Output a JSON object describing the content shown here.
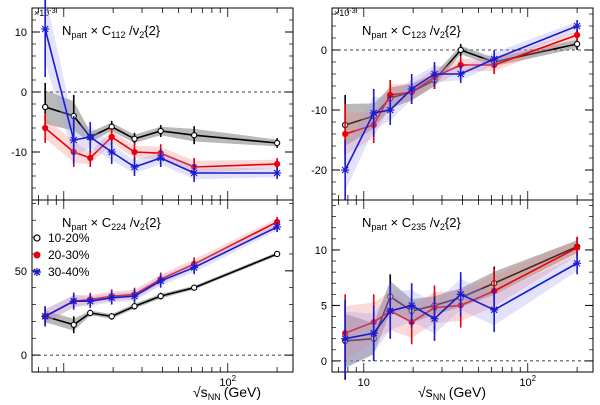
{
  "figure": {
    "xlabel": "√s",
    "xlabel_sub": "NN",
    "xlabel_unit": "(GeV)",
    "legend": {
      "entries": [
        {
          "label": "10-20%",
          "color": "#000000",
          "marker": "open-circle"
        },
        {
          "label": "20-30%",
          "color": "#e8000b",
          "marker": "filled-circle"
        },
        {
          "label": "30-40%",
          "color": "#1a1ad0",
          "marker": "star"
        }
      ]
    },
    "colors": {
      "c1020": "#000000",
      "c2030": "#e8000b",
      "c3040": "#1a1ad0",
      "band_gray": "#808080",
      "band_red": "#f08080",
      "band_blue": "#a0a0f0"
    }
  },
  "chart_data": [
    {
      "type": "line",
      "panel": "top-left",
      "title": {
        "prefix": "N",
        "prefix_sub": "part",
        "times": " × C",
        "c_sub": "112",
        "rest": " /v",
        "v_sub": "2",
        "tail": "{2}"
      },
      "multiplier": "×10",
      "multiplier_exp": "-3",
      "xscale": "log",
      "xlim": [
        6.4,
        250
      ],
      "ylim": [
        -18,
        14
      ],
      "yticks": [
        -10,
        0,
        10
      ],
      "xticks_major": [],
      "series": [
        {
          "name": "10-20%",
          "key": "c1020",
          "x": [
            7.7,
            11.5,
            14.5,
            19.6,
            27,
            39,
            62.4,
            200
          ],
          "y": [
            -2.5,
            -4,
            -7.5,
            -5.8,
            -7.8,
            -6.5,
            -7.2,
            -8.5
          ],
          "err": [
            4,
            3.5,
            1.2,
            1,
            1,
            1,
            1.5,
            0.8
          ]
        },
        {
          "name": "20-30%",
          "key": "c2030",
          "x": [
            7.7,
            11.5,
            14.5,
            19.6,
            27,
            39,
            62.4,
            200
          ],
          "y": [
            -6,
            -10,
            -11,
            -7.5,
            -10,
            -10.2,
            -12.5,
            -12
          ],
          "err": [
            2.5,
            2.5,
            1.5,
            1.5,
            1.5,
            1.5,
            1.5,
            1
          ]
        },
        {
          "name": "30-40%",
          "key": "c3040",
          "x": [
            7.7,
            11.5,
            14.5,
            19.6,
            27,
            39,
            62.4,
            200
          ],
          "y": [
            10.5,
            -8,
            -7.5,
            -10,
            -12.5,
            -11,
            -13.5,
            -13.5
          ],
          "err": [
            8,
            4,
            2.5,
            2,
            1.5,
            1.5,
            1.5,
            1
          ]
        }
      ]
    },
    {
      "type": "line",
      "panel": "top-right",
      "title": {
        "prefix": "N",
        "prefix_sub": "part",
        "times": " × C",
        "c_sub": "123",
        "rest": " /v",
        "v_sub": "2",
        "tail": "{2}"
      },
      "multiplier": "×10",
      "multiplier_exp": "-3",
      "xscale": "log",
      "xlim": [
        6.4,
        250
      ],
      "ylim": [
        -25,
        7
      ],
      "yticks": [
        -20,
        -10,
        0
      ],
      "xticks_major": [],
      "series": [
        {
          "name": "10-20%",
          "key": "c1020",
          "x": [
            7.7,
            11.5,
            14.5,
            19.6,
            27,
            39,
            62.4,
            200
          ],
          "y": [
            -12.5,
            -11,
            -8,
            -7,
            -5,
            0,
            -2,
            1
          ],
          "err": [
            5,
            3,
            2.5,
            2,
            1.5,
            1,
            1,
            1
          ]
        },
        {
          "name": "20-30%",
          "key": "c2030",
          "x": [
            7.7,
            11.5,
            14.5,
            19.6,
            27,
            39,
            62.4,
            200
          ],
          "y": [
            -14,
            -12.5,
            -7.5,
            -7,
            -4.5,
            -2.5,
            -2.5,
            2.5
          ],
          "err": [
            5,
            3,
            2.5,
            2,
            2,
            1.5,
            1.5,
            1
          ]
        },
        {
          "name": "30-40%",
          "key": "c3040",
          "x": [
            7.7,
            11.5,
            14.5,
            19.6,
            27,
            39,
            62.4,
            200
          ],
          "y": [
            -20,
            -10.5,
            -10,
            -6.5,
            -4,
            -4,
            -1.5,
            4
          ],
          "err": [
            5,
            4,
            2.5,
            2.5,
            2,
            1.5,
            1.5,
            1
          ]
        }
      ]
    },
    {
      "type": "line",
      "panel": "bottom-left",
      "title": {
        "prefix": "N",
        "prefix_sub": "part",
        "times": " × C",
        "c_sub": "224",
        "rest": " /v",
        "v_sub": "2",
        "tail": "{2}"
      },
      "multiplier": "",
      "multiplier_exp": "",
      "xscale": "log",
      "xlim": [
        6.4,
        250
      ],
      "ylim": [
        -10,
        92
      ],
      "yticks": [
        0,
        50
      ],
      "xticks_major": [
        100
      ],
      "series": [
        {
          "name": "10-20%",
          "key": "c1020",
          "x": [
            7.7,
            11.5,
            14.5,
            19.6,
            27,
            39,
            62.4,
            200
          ],
          "y": [
            23,
            18,
            25,
            23,
            29,
            35,
            40,
            60
          ],
          "err": [
            5,
            5,
            2,
            2,
            2,
            2,
            1.5,
            1.5
          ]
        },
        {
          "name": "20-30%",
          "key": "c2030",
          "x": [
            7.7,
            11.5,
            14.5,
            19.6,
            27,
            39,
            62.4,
            200
          ],
          "y": [
            23,
            32,
            33,
            35,
            36,
            45,
            54,
            79
          ],
          "err": [
            6,
            5,
            4,
            4,
            4,
            4,
            4,
            3
          ]
        },
        {
          "name": "30-40%",
          "key": "c3040",
          "x": [
            7.7,
            11.5,
            14.5,
            19.6,
            27,
            39,
            62.4,
            200
          ],
          "y": [
            23,
            32,
            32,
            34,
            35,
            44,
            52,
            76
          ],
          "err": [
            6,
            5,
            4,
            4,
            4,
            4,
            4,
            3
          ]
        }
      ]
    },
    {
      "type": "line",
      "panel": "bottom-right",
      "title": {
        "prefix": "N",
        "prefix_sub": "part",
        "times": " × C",
        "c_sub": "235",
        "rest": " /v",
        "v_sub": "2",
        "tail": "{2}"
      },
      "multiplier": "",
      "multiplier_exp": "",
      "xscale": "log",
      "xlim": [
        6.4,
        250
      ],
      "ylim": [
        -1,
        14.5
      ],
      "yticks": [
        0,
        5,
        10
      ],
      "xticks_major": [
        10,
        100
      ],
      "series": [
        {
          "name": "10-20%",
          "key": "c1020",
          "x": [
            7.7,
            11.5,
            14.5,
            19.6,
            27,
            39,
            62.4,
            200
          ],
          "y": [
            1.8,
            2,
            5.8,
            4.5,
            5,
            5.7,
            7,
            10.3
          ],
          "err": [
            3.5,
            2,
            2,
            1.5,
            1.2,
            1.2,
            1.5,
            0.8
          ]
        },
        {
          "name": "20-30%",
          "key": "c2030",
          "x": [
            7.7,
            11.5,
            14.5,
            19.6,
            27,
            39,
            62.4,
            200
          ],
          "y": [
            2.5,
            3.5,
            4.5,
            3.5,
            4.8,
            5,
            6.3,
            10.2
          ],
          "err": [
            3.5,
            2.5,
            2.5,
            2,
            2,
            2,
            2,
            1
          ]
        },
        {
          "name": "30-40%",
          "key": "c3040",
          "x": [
            7.7,
            11.5,
            14.5,
            19.6,
            27,
            39,
            62.4,
            200
          ],
          "y": [
            2,
            2.5,
            4.5,
            5,
            3.8,
            6,
            4.6,
            8.8
          ],
          "err": [
            3.5,
            2.5,
            2.5,
            2,
            2,
            2,
            2,
            1
          ]
        }
      ]
    }
  ]
}
